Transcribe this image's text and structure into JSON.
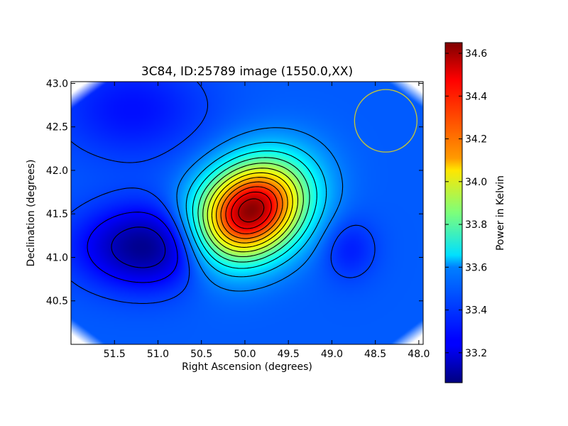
{
  "chart_data": {
    "type": "heatmap",
    "title": "3C84, ID:25789 image (1550.0,XX)",
    "xlabel": "Right Ascension (degrees)",
    "ylabel": "Declination (degrees)",
    "xlim": [
      52.0,
      47.95
    ],
    "ylim": [
      40.0,
      43.02
    ],
    "x_reversed": true,
    "xticks": [
      51.5,
      51.0,
      50.5,
      50.0,
      49.5,
      49.0,
      48.5,
      48.0
    ],
    "yticks": [
      40.5,
      41.0,
      41.5,
      42.0,
      42.5,
      43.0
    ],
    "colorbar": {
      "label": "Power in Kelvin",
      "min": 33.06,
      "max": 34.65,
      "ticks": [
        33.2,
        33.4,
        33.6,
        33.8,
        34.0,
        34.2,
        34.4,
        34.6
      ],
      "colormap": "jet"
    },
    "source": {
      "name": "3C84",
      "ra": 49.94,
      "dec": 41.53,
      "peak": 34.65
    },
    "minimum": {
      "ra": 51.08,
      "dec": 41.12,
      "value": 33.06
    },
    "local_low": {
      "ra": 48.8,
      "dec": 41.1,
      "value": 33.3
    },
    "background": 33.4,
    "beam_circle": {
      "ra": 48.38,
      "dec": 42.57,
      "color": "#c8c832"
    },
    "contours": "black"
  }
}
